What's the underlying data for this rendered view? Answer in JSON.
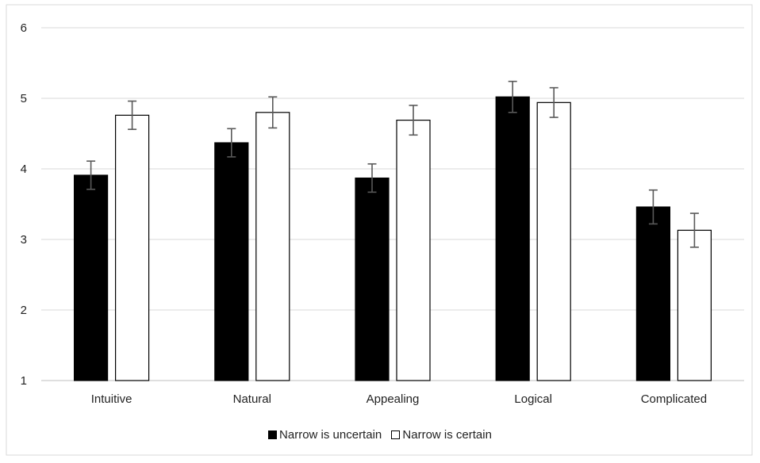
{
  "chart_data": {
    "type": "bar",
    "title": "",
    "xlabel": "",
    "ylabel": "",
    "ylim": [
      1,
      6
    ],
    "yticks": [
      "1",
      "2",
      "3",
      "4",
      "5",
      "6"
    ],
    "grid": true,
    "legend_position": "bottom",
    "categories": [
      "Intuitive",
      "Natural",
      "Appealing",
      "Logical",
      "Complicated"
    ],
    "series": [
      {
        "name": "Narrow is uncertain",
        "color": "#000000",
        "values": [
          3.91,
          4.37,
          3.87,
          5.02,
          3.46
        ],
        "errors": [
          0.2,
          0.2,
          0.2,
          0.22,
          0.24
        ]
      },
      {
        "name": "Narrow is certain",
        "color": "#ffffff",
        "values": [
          4.76,
          4.8,
          4.69,
          4.94,
          3.13
        ],
        "errors": [
          0.2,
          0.22,
          0.21,
          0.21,
          0.24
        ]
      }
    ]
  }
}
